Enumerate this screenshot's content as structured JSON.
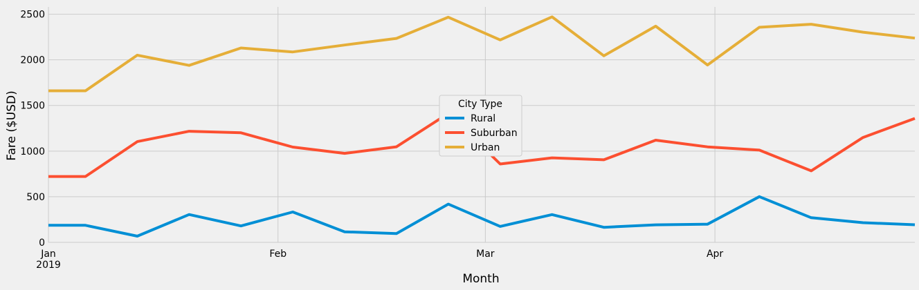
{
  "chart_data": {
    "type": "line",
    "title": "",
    "xlabel": "Month",
    "ylabel": "Fare ($USD)",
    "ylim": [
      0,
      2580
    ],
    "yticks": [
      0,
      500,
      1000,
      1500,
      2000,
      2500
    ],
    "grid": true,
    "legend": {
      "title": "City Type",
      "placement": "center"
    },
    "x": [
      "2019-01-06",
      "2019-01-13",
      "2019-01-20",
      "2019-01-27",
      "2019-02-03",
      "2019-02-10",
      "2019-02-17",
      "2019-02-24",
      "2019-03-03",
      "2019-03-10",
      "2019-03-17",
      "2019-03-24",
      "2019-03-31",
      "2019-04-07",
      "2019-04-14",
      "2019-04-21",
      "2019-04-28"
    ],
    "xticks": [
      {
        "date": "2019-01-01",
        "label": "Jan",
        "sublabel": "2019"
      },
      {
        "date": "2019-02-01",
        "label": "Feb",
        "sublabel": ""
      },
      {
        "date": "2019-03-01",
        "label": "Mar",
        "sublabel": ""
      },
      {
        "date": "2019-04-01",
        "label": "Apr",
        "sublabel": ""
      }
    ],
    "series": [
      {
        "name": "Rural",
        "color": "#008fd5",
        "values": [
          187,
          68,
          305,
          180,
          333,
          116,
          97,
          419,
          175,
          304,
          165,
          192,
          199,
          501,
          270,
          216,
          193
        ]
      },
      {
        "name": "Suburban",
        "color": "#fc4f30",
        "values": [
          722,
          1104,
          1217,
          1201,
          1044,
          975,
          1047,
          1413,
          859,
          926,
          905,
          1120,
          1046,
          1011,
          784,
          1149,
          1358
        ]
      },
      {
        "name": "Urban",
        "color": "#e5ae38",
        "values": [
          1661,
          2051,
          1939,
          2130,
          2087,
          2162,
          2235,
          2467,
          2218,
          2471,
          2044,
          2369,
          1944,
          2357,
          2390,
          2303,
          2238
        ]
      }
    ]
  }
}
